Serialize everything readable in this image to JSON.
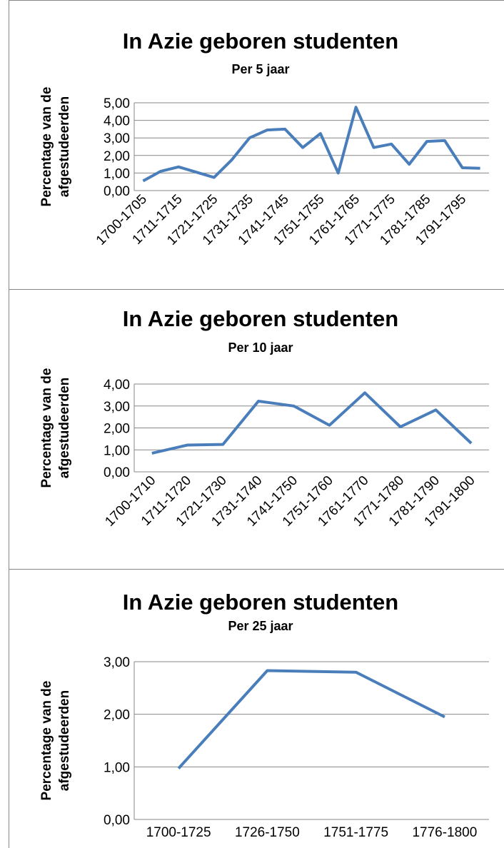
{
  "chart_data": [
    {
      "type": "line",
      "title": "In Azie geboren studenten",
      "subtitle": "Per 5 jaar",
      "ylabel": [
        "Percentage van de",
        "afgestudeerden"
      ],
      "categories": [
        "1700-1705",
        null,
        "1711-1715",
        null,
        "1721-1725",
        null,
        "1731-1735",
        null,
        "1741-1745",
        null,
        "1751-1755",
        null,
        "1761-1765",
        null,
        "1771-1775",
        null,
        "1781-1785",
        null,
        "1791-1795",
        null
      ],
      "series": [
        {
          "name": "Percentage",
          "color": "#4a7ebb",
          "values": [
            0.55,
            1.1,
            1.35,
            1.05,
            0.75,
            1.75,
            3.0,
            3.45,
            3.5,
            2.45,
            3.25,
            1.0,
            4.75,
            2.45,
            2.65,
            1.5,
            2.8,
            2.85,
            1.3,
            1.27
          ]
        }
      ],
      "ylim": [
        0,
        5
      ],
      "yticks": [
        {
          "value": 0,
          "label": "0,00"
        },
        {
          "value": 1,
          "label": "1,00"
        },
        {
          "value": 2,
          "label": "2,00"
        },
        {
          "value": 3,
          "label": "3,00"
        },
        {
          "value": 4,
          "label": "4,00"
        },
        {
          "value": 5,
          "label": "5,00"
        }
      ],
      "grid": true,
      "rotate_labels": true
    },
    {
      "type": "line",
      "title": "In Azie geboren studenten",
      "subtitle": "Per 10 jaar",
      "ylabel": [
        "Percentage van de",
        "afgestudeerden"
      ],
      "categories": [
        "1700-1710",
        "1711-1720",
        "1721-1730",
        "1731-1740",
        "1741-1750",
        "1751-1760",
        "1761-1770",
        "1771-1780",
        "1781-1790",
        "1791-1800"
      ],
      "series": [
        {
          "name": "Percentage",
          "color": "#4a7ebb",
          "values": [
            0.85,
            1.22,
            1.25,
            3.22,
            3.0,
            2.12,
            3.6,
            2.05,
            2.82,
            1.3
          ]
        }
      ],
      "ylim": [
        0,
        4
      ],
      "yticks": [
        {
          "value": 0,
          "label": "0,00"
        },
        {
          "value": 1,
          "label": "1,00"
        },
        {
          "value": 2,
          "label": "2,00"
        },
        {
          "value": 3,
          "label": "3,00"
        },
        {
          "value": 4,
          "label": "4,00"
        }
      ],
      "grid": true,
      "rotate_labels": true
    },
    {
      "type": "line",
      "title": "In Azie geboren studenten",
      "subtitle": "Per 25 jaar",
      "ylabel": [
        "Percentage van de",
        "afgestudeerden"
      ],
      "categories": [
        "1700-1725",
        "1726-1750",
        "1751-1775",
        "1776-1800"
      ],
      "series": [
        {
          "name": "Percentage",
          "color": "#4a7ebb",
          "values": [
            0.97,
            2.83,
            2.8,
            1.95
          ]
        }
      ],
      "ylim": [
        0,
        3
      ],
      "yticks": [
        {
          "value": 0,
          "label": "0,00"
        },
        {
          "value": 1,
          "label": "1,00"
        },
        {
          "value": 2,
          "label": "2,00"
        },
        {
          "value": 3,
          "label": "3,00"
        }
      ],
      "grid": true,
      "rotate_labels": false
    }
  ]
}
